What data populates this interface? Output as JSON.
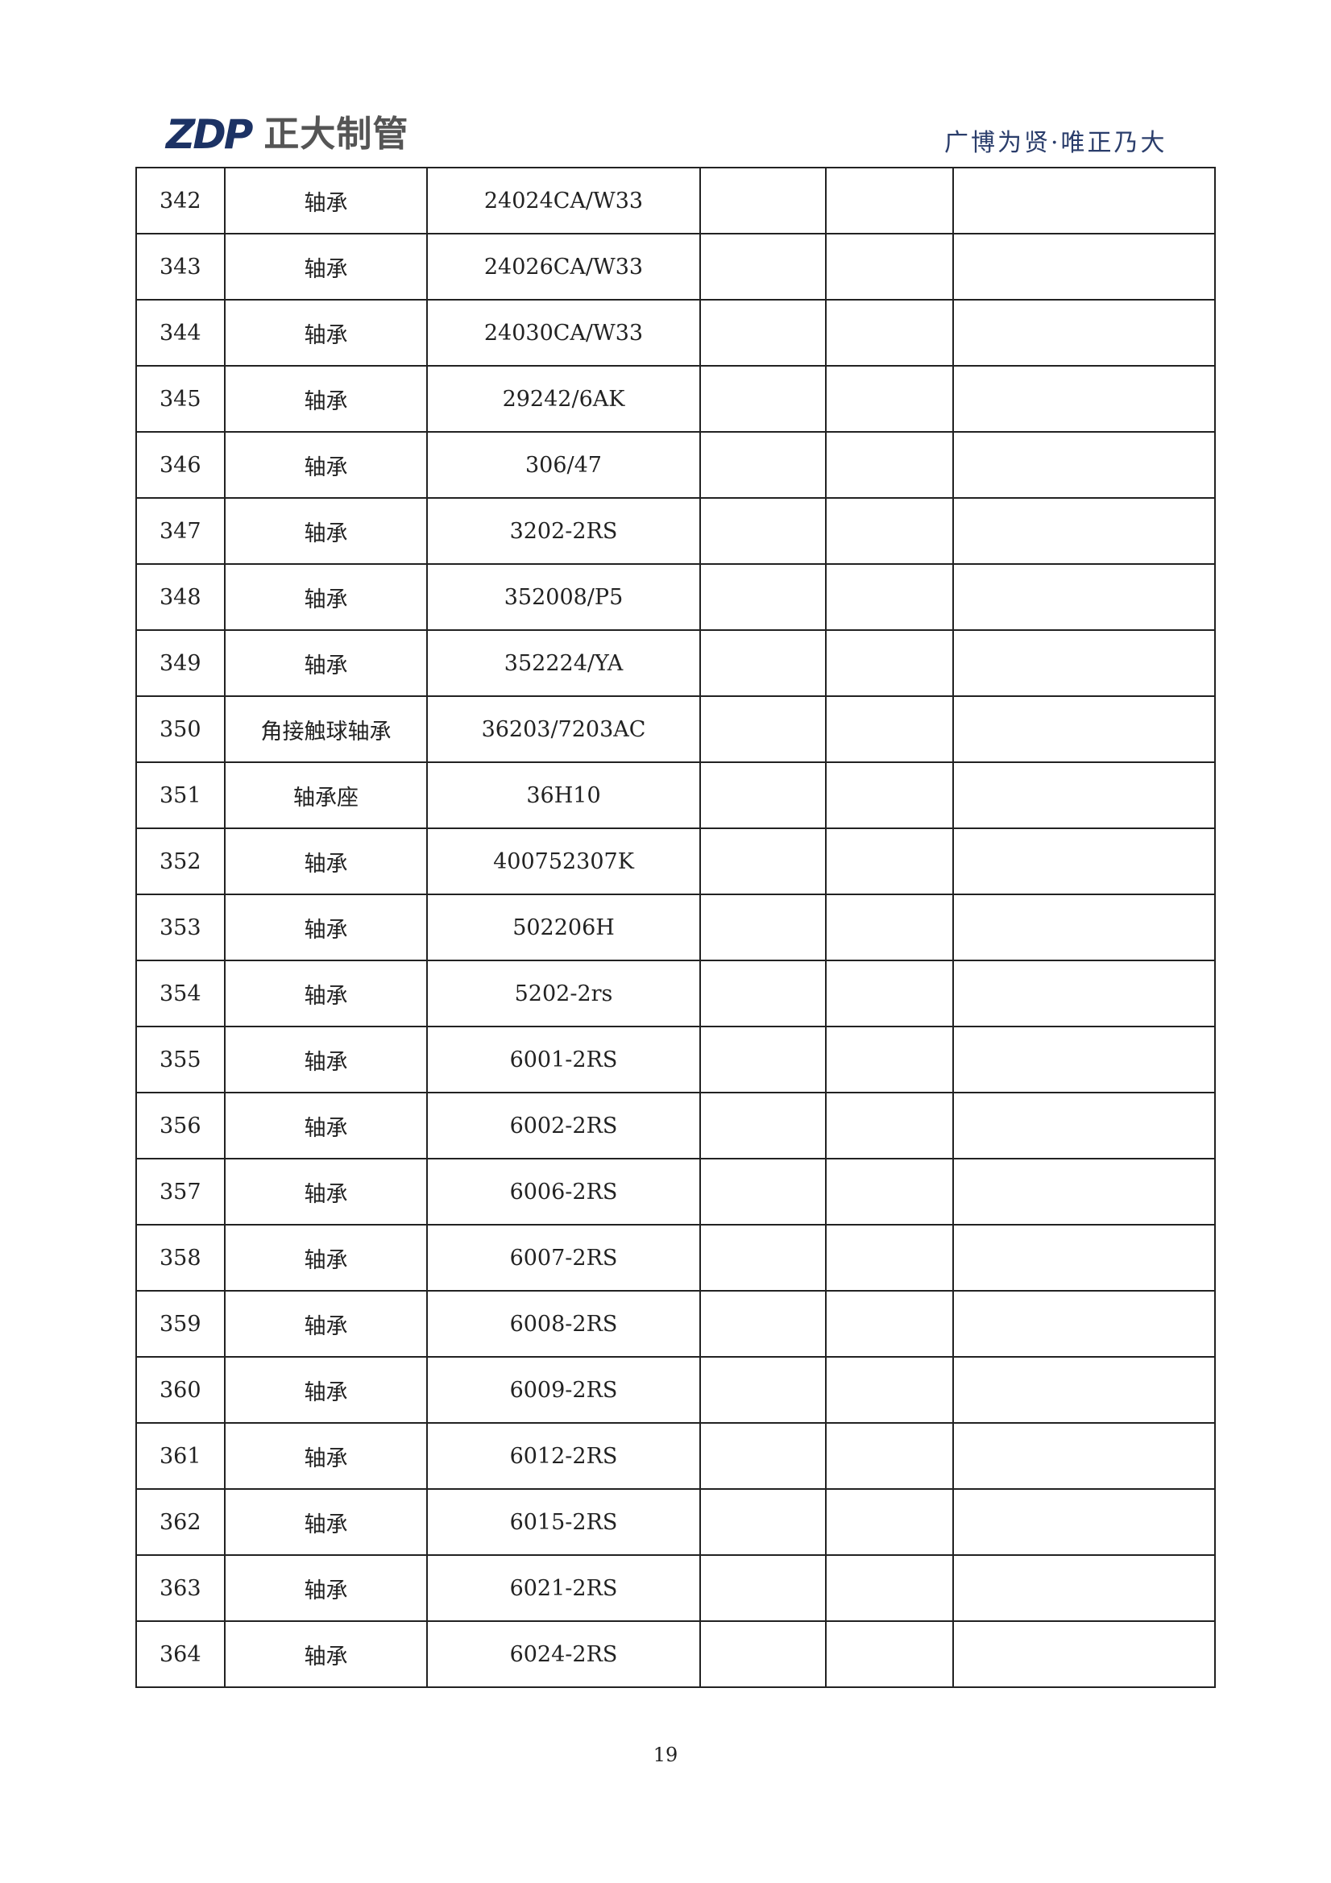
{
  "header": {
    "logo_text": "ZDP 正大制管",
    "logo_mark": "ZDP",
    "logo_name": "正大制管",
    "slogan": "广博为贤·唯正乃大",
    "brand_color": "#1c3264"
  },
  "table": {
    "rows": [
      {
        "no": "342",
        "name": "轴承",
        "model": "24024CA/W33"
      },
      {
        "no": "343",
        "name": "轴承",
        "model": "24026CA/W33"
      },
      {
        "no": "344",
        "name": "轴承",
        "model": "24030CA/W33"
      },
      {
        "no": "345",
        "name": "轴承",
        "model": "29242/6AK"
      },
      {
        "no": "346",
        "name": "轴承",
        "model": "306/47"
      },
      {
        "no": "347",
        "name": "轴承",
        "model": "3202-2RS"
      },
      {
        "no": "348",
        "name": "轴承",
        "model": "352008/P5"
      },
      {
        "no": "349",
        "name": "轴承",
        "model": "352224/YA"
      },
      {
        "no": "350",
        "name": "角接触球轴承",
        "model": "36203/7203AC"
      },
      {
        "no": "351",
        "name": "轴承座",
        "model": "36H10"
      },
      {
        "no": "352",
        "name": "轴承",
        "model": "400752307K"
      },
      {
        "no": "353",
        "name": "轴承",
        "model": "502206H"
      },
      {
        "no": "354",
        "name": "轴承",
        "model": "5202-2rs"
      },
      {
        "no": "355",
        "name": "轴承",
        "model": "6001-2RS"
      },
      {
        "no": "356",
        "name": "轴承",
        "model": "6002-2RS"
      },
      {
        "no": "357",
        "name": "轴承",
        "model": "6006-2RS"
      },
      {
        "no": "358",
        "name": "轴承",
        "model": "6007-2RS"
      },
      {
        "no": "359",
        "name": "轴承",
        "model": "6008-2RS"
      },
      {
        "no": "360",
        "name": "轴承",
        "model": "6009-2RS"
      },
      {
        "no": "361",
        "name": "轴承",
        "model": "6012-2RS"
      },
      {
        "no": "362",
        "name": "轴承",
        "model": "6015-2RS"
      },
      {
        "no": "363",
        "name": "轴承",
        "model": "6021-2RS"
      },
      {
        "no": "364",
        "name": "轴承",
        "model": "6024-2RS"
      }
    ]
  },
  "footer": {
    "page_number": "19"
  }
}
